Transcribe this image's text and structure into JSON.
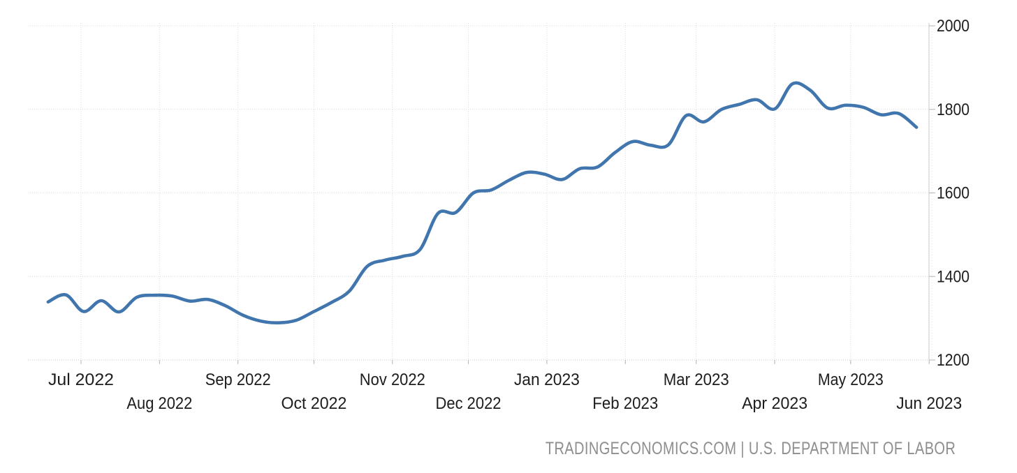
{
  "footer": {
    "text": "TRADINGECONOMICS.COM | U.S. DEPARTMENT OF LABOR"
  },
  "colors": {
    "line": "#4076ad",
    "grid": "#dcdcdc",
    "axis": "#c9c9c9",
    "tick": "#b5b5b5",
    "tick_text": "#1d1d1d",
    "attribution_text": "#8e8e8e",
    "background": "#ffffff"
  },
  "chart_data": {
    "type": "line",
    "title": "",
    "xlabel": "",
    "ylabel": "",
    "grid": true,
    "legend_position": "none",
    "ylim": [
      1200,
      2000
    ],
    "y_ticks": [
      2000,
      1800,
      1600,
      1400,
      1200
    ],
    "x_axis_months": [
      {
        "label": "Jul 2022",
        "date": "2022-07-01",
        "row": 1
      },
      {
        "label": "Aug 2022",
        "date": "2022-08-01",
        "row": 2
      },
      {
        "label": "Sep 2022",
        "date": "2022-09-01",
        "row": 1
      },
      {
        "label": "Oct 2022",
        "date": "2022-10-01",
        "row": 2
      },
      {
        "label": "Nov 2022",
        "date": "2022-11-01",
        "row": 1
      },
      {
        "label": "Dec 2022",
        "date": "2022-12-01",
        "row": 2
      },
      {
        "label": "Jan 2023",
        "date": "2023-01-01",
        "row": 1
      },
      {
        "label": "Feb 2023",
        "date": "2023-02-01",
        "row": 2
      },
      {
        "label": "Mar 2023",
        "date": "2023-03-01",
        "row": 1
      },
      {
        "label": "Apr 2023",
        "date": "2023-04-01",
        "row": 2
      },
      {
        "label": "May 2023",
        "date": "2023-05-01",
        "row": 1
      },
      {
        "label": "Jun 2023",
        "date": "2023-06-01",
        "row": 2
      }
    ],
    "series": [
      {
        "color": "#4076ad",
        "dates": [
          "2022-06-18",
          "2022-06-25",
          "2022-07-02",
          "2022-07-09",
          "2022-07-16",
          "2022-07-23",
          "2022-07-30",
          "2022-08-06",
          "2022-08-13",
          "2022-08-20",
          "2022-08-27",
          "2022-09-03",
          "2022-09-10",
          "2022-09-17",
          "2022-09-24",
          "2022-10-01",
          "2022-10-08",
          "2022-10-15",
          "2022-10-22",
          "2022-10-29",
          "2022-11-05",
          "2022-11-12",
          "2022-11-19",
          "2022-11-26",
          "2022-12-03",
          "2022-12-10",
          "2022-12-17",
          "2022-12-24",
          "2022-12-31",
          "2023-01-07",
          "2023-01-14",
          "2023-01-21",
          "2023-01-28",
          "2023-02-04",
          "2023-02-11",
          "2023-02-18",
          "2023-02-25",
          "2023-03-04",
          "2023-03-11",
          "2023-03-18",
          "2023-03-25",
          "2023-04-01",
          "2023-04-08",
          "2023-04-15",
          "2023-04-22",
          "2023-04-29",
          "2023-05-06",
          "2023-05-13",
          "2023-05-20",
          "2023-05-27"
        ],
        "values": [
          1339,
          1356,
          1316,
          1342,
          1315,
          1350,
          1355,
          1353,
          1341,
          1345,
          1330,
          1307,
          1293,
          1289,
          1295,
          1316,
          1338,
          1365,
          1424,
          1439,
          1448,
          1465,
          1551,
          1553,
          1600,
          1607,
          1630,
          1649,
          1645,
          1632,
          1658,
          1662,
          1697,
          1723,
          1714,
          1715,
          1785,
          1770,
          1800,
          1812,
          1823,
          1801,
          1861,
          1846,
          1803,
          1810,
          1805,
          1787,
          1790,
          1757
        ]
      }
    ]
  }
}
